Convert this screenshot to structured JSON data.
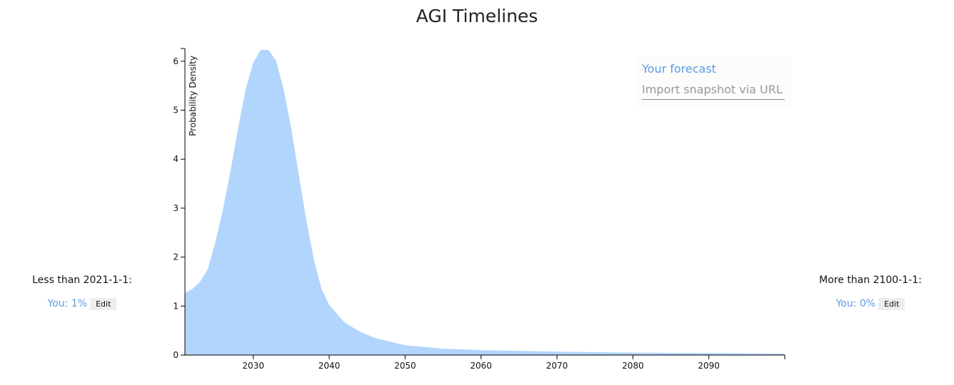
{
  "chart_data": {
    "type": "area",
    "title": "AGI Timelines",
    "y_label": "Probability Density",
    "x": [
      2021,
      2022,
      2023,
      2024,
      2025,
      2026,
      2027,
      2028,
      2029,
      2030,
      2031,
      2032,
      2033,
      2034,
      2035,
      2036,
      2037,
      2038,
      2039,
      2040,
      2042,
      2044,
      2046,
      2050,
      2055,
      2060,
      2070,
      2080,
      2090,
      2100
    ],
    "series": [
      {
        "name": "Your forecast",
        "color": "#b1d5fc",
        "values": [
          1.27,
          1.35,
          1.5,
          1.75,
          2.3,
          2.96,
          3.76,
          4.63,
          5.43,
          5.97,
          6.23,
          6.23,
          6.01,
          5.43,
          4.63,
          3.68,
          2.74,
          1.94,
          1.35,
          1.02,
          0.67,
          0.48,
          0.35,
          0.2,
          0.13,
          0.1,
          0.07,
          0.05,
          0.04,
          0.03
        ]
      }
    ],
    "xlim": [
      2021,
      2100
    ],
    "xticks": [
      2030,
      2040,
      2050,
      2060,
      2070,
      2080,
      2090
    ],
    "ylim": [
      0,
      6.26
    ],
    "yticks": [
      0,
      1,
      2,
      3,
      4,
      5,
      6
    ]
  },
  "legend_box": {
    "forecast_label": "Your forecast",
    "import_placeholder": "Import snapshot via URL"
  },
  "left_panel": {
    "heading": "Less than 2021-1-1:",
    "value": "You: 1%",
    "button": "Edit"
  },
  "right_panel": {
    "heading": "More than 2100-1-1:",
    "value": "You: 0%",
    "button": "Edit"
  }
}
